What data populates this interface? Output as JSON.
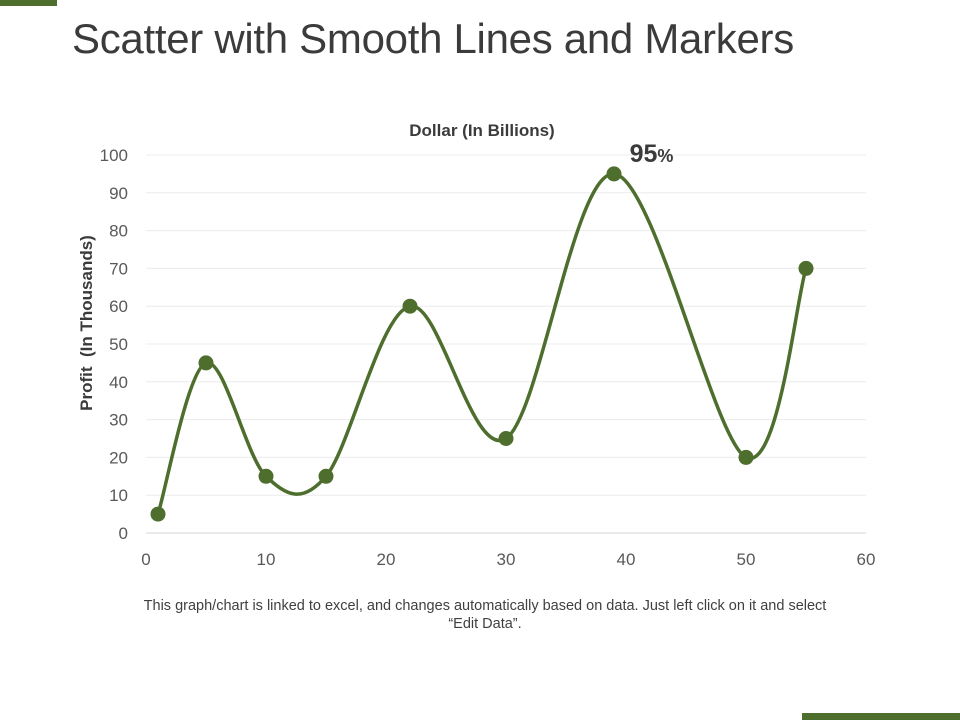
{
  "slide": {
    "title": "Scatter with Smooth Lines and Markers",
    "footnote": "This graph/chart is linked to excel, and changes automatically based on data. Just left click on it and select “Edit Data”.",
    "accent_color": "#4e6e2e"
  },
  "chart_data": {
    "type": "scatter",
    "smooth": true,
    "title": "Dollar (In Billions)",
    "xlabel": "",
    "ylabel": "Profit  (In Thousands)",
    "xlim": [
      0,
      60
    ],
    "ylim": [
      0,
      100
    ],
    "x_ticks": [
      0,
      10,
      20,
      30,
      40,
      50,
      60
    ],
    "y_ticks": [
      0,
      10,
      20,
      30,
      40,
      50,
      60,
      70,
      80,
      90,
      100
    ],
    "grid": true,
    "series": [
      {
        "color": "#4e6e2e",
        "x": [
          1,
          5,
          10,
          15,
          22,
          30,
          39,
          50,
          55
        ],
        "y": [
          5,
          45,
          15,
          15,
          60,
          25,
          95,
          20,
          70
        ]
      }
    ],
    "annotations": [
      {
        "text": "95",
        "suffix": "%",
        "x": 40.3,
        "y": 100
      }
    ]
  }
}
